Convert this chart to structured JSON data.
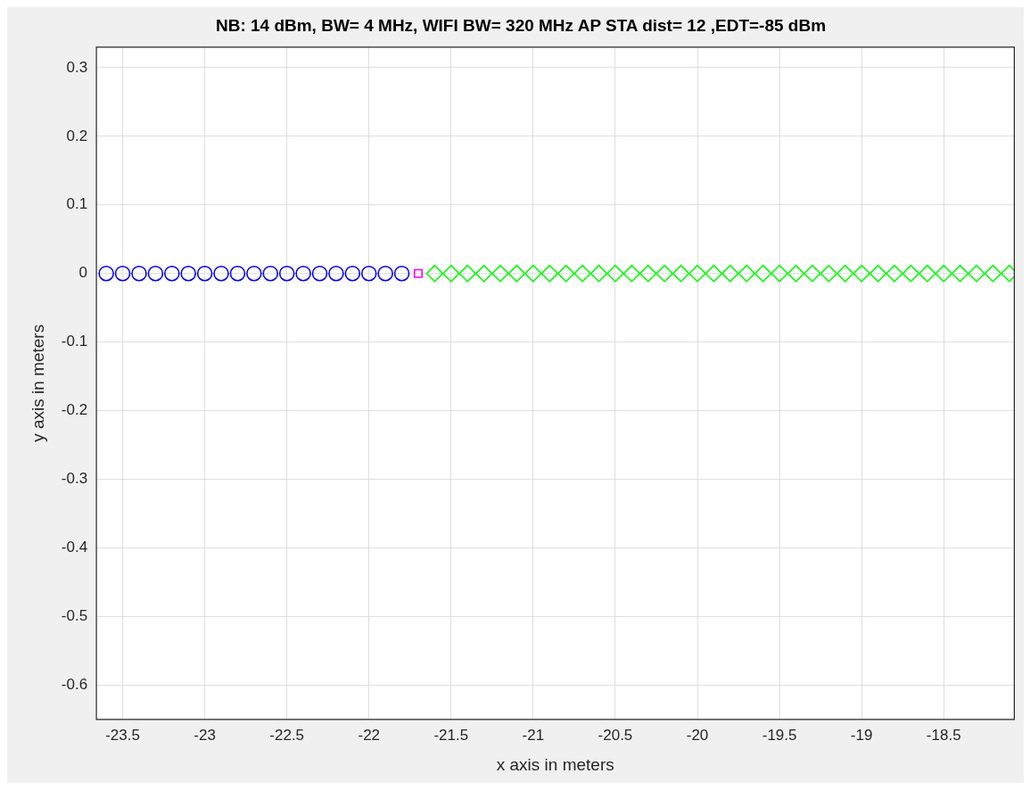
{
  "chart_data": {
    "type": "scatter",
    "title": "NB: 14 dBm, BW= 4 MHz, WIFI BW= 320 MHz AP STA dist= 12 ,EDT=-85 dBm",
    "xlabel": "x axis in meters",
    "ylabel": "y axis in meters",
    "xlim": [
      -23.66,
      -18.07
    ],
    "xticks": [
      -23.5,
      -23,
      -22.5,
      -22,
      -21.5,
      -21,
      -20.5,
      -20,
      -19.5,
      -19,
      -18.5
    ],
    "ylim": [
      -0.65,
      0.33
    ],
    "yticks": [
      -0.6,
      -0.5,
      -0.4,
      -0.3,
      -0.2,
      -0.1,
      0,
      0.1,
      0.2,
      0.3
    ],
    "grid": true,
    "series": [
      {
        "color": "#0000ff",
        "marker": "circle",
        "x": [
          -23.6,
          -23.5,
          -23.4,
          -23.3,
          -23.2,
          -23.1,
          -23.0,
          -22.9,
          -22.8,
          -22.7,
          -22.6,
          -22.5,
          -22.4,
          -22.3,
          -22.2,
          -22.1,
          -22.0,
          -21.9,
          -21.8
        ],
        "values": [
          0,
          0,
          0,
          0,
          0,
          0,
          0,
          0,
          0,
          0,
          0,
          0,
          0,
          0,
          0,
          0,
          0,
          0,
          0
        ]
      },
      {
        "color": "#ff00ff",
        "marker": "square",
        "x": [
          -21.7
        ],
        "values": [
          0
        ]
      },
      {
        "color": "#00ff00",
        "marker": "diamond",
        "x": [
          -21.6,
          -21.5,
          -21.4,
          -21.3,
          -21.2,
          -21.1,
          -21.0,
          -20.9,
          -20.8,
          -20.7,
          -20.6,
          -20.5,
          -20.4,
          -20.3,
          -20.2,
          -20.1,
          -20.0,
          -19.9,
          -19.8,
          -19.7,
          -19.6,
          -19.5,
          -19.4,
          -19.3,
          -19.2,
          -19.1,
          -19.0,
          -18.9,
          -18.8,
          -18.7,
          -18.6,
          -18.5,
          -18.4,
          -18.3,
          -18.2,
          -18.1
        ],
        "values": [
          0,
          0,
          0,
          0,
          0,
          0,
          0,
          0,
          0,
          0,
          0,
          0,
          0,
          0,
          0,
          0,
          0,
          0,
          0,
          0,
          0,
          0,
          0,
          0,
          0,
          0,
          0,
          0,
          0,
          0,
          0,
          0,
          0,
          0,
          0,
          0
        ]
      }
    ]
  }
}
